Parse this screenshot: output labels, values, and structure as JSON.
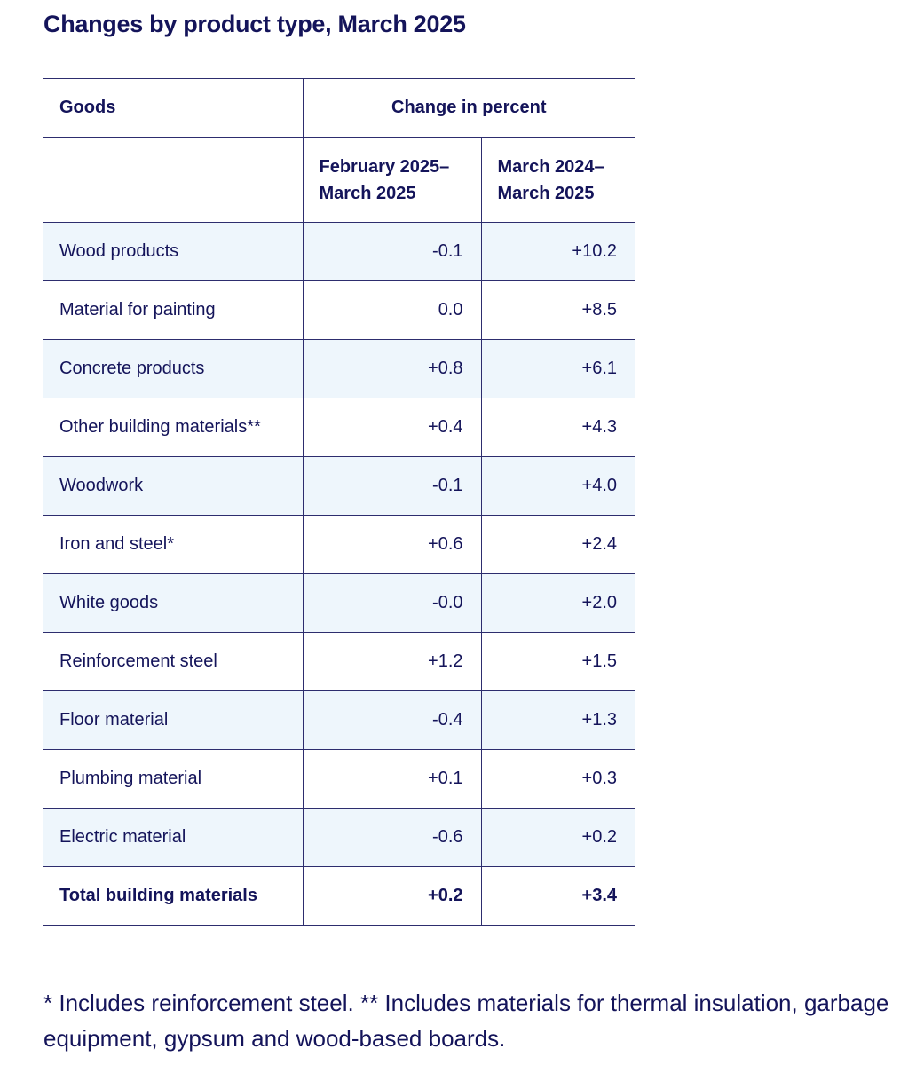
{
  "title": "Changes by product type, March 2025",
  "table": {
    "header_goods": "Goods",
    "header_change": "Change in percent",
    "period1": "February 2025–\nMarch 2025",
    "period2": "March 2024–\nMarch 2025",
    "rows": [
      {
        "label": "Wood products",
        "v1": "-0.1",
        "v2": "+10.2"
      },
      {
        "label": "Material for painting",
        "v1": "0.0",
        "v2": "+8.5"
      },
      {
        "label": "Concrete products",
        "v1": "+0.8",
        "v2": "+6.1"
      },
      {
        "label": "Other building materials**",
        "v1": "+0.4",
        "v2": "+4.3"
      },
      {
        "label": "Woodwork",
        "v1": "-0.1",
        "v2": "+4.0"
      },
      {
        "label": "Iron and steel*",
        "v1": "+0.6",
        "v2": "+2.4"
      },
      {
        "label": "White goods",
        "v1": "-0.0",
        "v2": "+2.0"
      },
      {
        "label": "Reinforcement steel",
        "v1": "+1.2",
        "v2": "+1.5"
      },
      {
        "label": "Floor material",
        "v1": "-0.4",
        "v2": "+1.3"
      },
      {
        "label": "Plumbing material",
        "v1": "+0.1",
        "v2": "+0.3"
      },
      {
        "label": "Electric material",
        "v1": "-0.6",
        "v2": "+0.2"
      }
    ],
    "total": {
      "label": "Total building materials",
      "v1": "+0.2",
      "v2": "+3.4"
    }
  },
  "footnote": "* Includes reinforcement steel. ** Includes materials for thermal insulation, garbage equipment, gypsum and wood-based boards."
}
